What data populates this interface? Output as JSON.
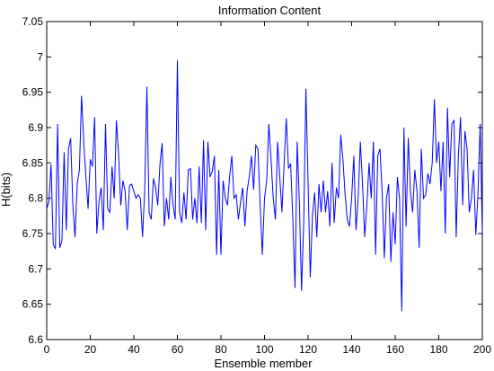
{
  "chart_data": {
    "type": "line",
    "title": "Information Content",
    "xlabel": "Ensemble member",
    "ylabel": "H(bits)",
    "xlim": [
      0,
      200
    ],
    "ylim": [
      6.6,
      7.05
    ],
    "xticks": [
      0,
      20,
      40,
      60,
      80,
      100,
      120,
      140,
      160,
      180,
      200
    ],
    "xtick_labels": [
      "0",
      "20",
      "40",
      "60",
      "80",
      "100",
      "120",
      "140",
      "160",
      "180",
      "200"
    ],
    "yticks": [
      6.6,
      6.65,
      6.7,
      6.75,
      6.8,
      6.85,
      6.9,
      6.95,
      7.0,
      7.05
    ],
    "ytick_labels": [
      "6.6",
      "6.65",
      "6.7",
      "6.75",
      "6.8",
      "6.85",
      "6.9",
      "6.95",
      "7",
      "7.05"
    ],
    "grid": false,
    "line_color": "#0000ff",
    "series": [
      {
        "x": [
          0,
          1,
          2,
          3,
          4,
          5,
          6,
          7,
          8,
          9,
          10,
          11,
          12,
          13,
          14,
          15,
          16,
          17,
          18,
          19,
          20,
          21,
          22,
          23,
          24,
          25,
          26,
          27,
          28,
          29,
          30,
          31,
          32,
          33,
          34,
          35,
          36,
          37,
          38,
          39,
          40,
          41,
          42,
          43,
          44,
          45,
          46,
          47,
          48,
          49,
          50,
          51,
          52,
          53,
          54,
          55,
          56,
          57,
          58,
          59,
          60,
          61,
          62,
          63,
          64,
          65,
          66,
          67,
          68,
          69,
          70,
          71,
          72,
          73,
          74,
          75,
          76,
          77,
          78,
          79,
          80,
          81,
          82,
          83,
          84,
          85,
          86,
          87,
          88,
          89,
          90,
          91,
          92,
          93,
          94,
          95,
          96,
          97,
          98,
          99,
          100,
          101,
          102,
          103,
          104,
          105,
          106,
          107,
          108,
          109,
          110,
          111,
          112,
          113,
          114,
          115,
          116,
          117,
          118,
          119,
          120,
          121,
          122,
          123,
          124,
          125,
          126,
          127,
          128,
          129,
          130,
          131,
          132,
          133,
          134,
          135,
          136,
          137,
          138,
          139,
          140,
          141,
          142,
          143,
          144,
          145,
          146,
          147,
          148,
          149,
          150,
          151,
          152,
          153,
          154,
          155,
          156,
          157,
          158,
          159,
          160,
          161,
          162,
          163,
          164,
          165,
          166,
          167,
          168,
          169,
          170,
          171,
          172,
          173,
          174,
          175,
          176,
          177,
          178,
          179,
          180,
          181,
          182,
          183,
          184,
          185,
          186,
          187,
          188,
          189,
          190,
          191,
          192,
          193,
          194,
          195,
          196,
          197,
          198,
          199,
          200
        ],
        "values": [
          6.785,
          6.795,
          6.848,
          6.735,
          6.728,
          6.905,
          6.73,
          6.74,
          6.865,
          6.755,
          6.87,
          6.885,
          6.79,
          6.745,
          6.82,
          6.84,
          6.945,
          6.88,
          6.83,
          6.785,
          6.855,
          6.845,
          6.915,
          6.75,
          6.795,
          6.815,
          6.755,
          6.905,
          6.785,
          6.78,
          6.845,
          6.8,
          6.91,
          6.862,
          6.79,
          6.825,
          6.81,
          6.755,
          6.818,
          6.82,
          6.81,
          6.8,
          6.805,
          6.8,
          6.745,
          6.812,
          6.958,
          6.78,
          6.77,
          6.828,
          6.815,
          6.79,
          6.848,
          6.878,
          6.76,
          6.8,
          6.77,
          6.83,
          6.79,
          6.77,
          6.995,
          6.78,
          6.765,
          6.808,
          6.77,
          6.84,
          6.842,
          6.77,
          6.8,
          6.765,
          6.845,
          6.765,
          6.882,
          6.755,
          6.88,
          6.83,
          6.838,
          6.86,
          6.72,
          6.84,
          6.72,
          6.825,
          6.8,
          6.79,
          6.832,
          6.86,
          6.8,
          6.805,
          6.77,
          6.795,
          6.815,
          6.76,
          6.81,
          6.83,
          6.86,
          6.812,
          6.875,
          6.87,
          6.79,
          6.72,
          6.8,
          6.825,
          6.905,
          6.855,
          6.8,
          6.77,
          6.88,
          6.83,
          6.78,
          6.85,
          6.913,
          6.842,
          6.849,
          6.77,
          6.673,
          6.88,
          6.795,
          6.669,
          6.765,
          6.955,
          6.822,
          6.688,
          6.775,
          6.808,
          6.745,
          6.82,
          6.78,
          6.825,
          6.78,
          6.81,
          6.76,
          6.85,
          6.765,
          6.815,
          6.8,
          6.89,
          6.855,
          6.805,
          6.77,
          6.76,
          6.8,
          6.86,
          6.755,
          6.8,
          6.88,
          6.82,
          6.745,
          6.79,
          6.85,
          6.8,
          6.88,
          6.72,
          6.86,
          6.87,
          6.81,
          6.715,
          6.8,
          6.82,
          6.71,
          6.78,
          6.735,
          6.83,
          6.8,
          6.64,
          6.9,
          6.76,
          6.885,
          6.81,
          6.78,
          6.84,
          6.81,
          6.73,
          6.87,
          6.8,
          6.805,
          6.835,
          6.82,
          6.85,
          6.94,
          6.85,
          6.88,
          6.81,
          6.88,
          6.75,
          6.928,
          6.83,
          6.905,
          6.91,
          6.745,
          6.86,
          6.915,
          6.79,
          6.895,
          6.87,
          6.78,
          6.8,
          6.84,
          6.748,
          6.805,
          6.905,
          6.75
        ]
      }
    ]
  }
}
